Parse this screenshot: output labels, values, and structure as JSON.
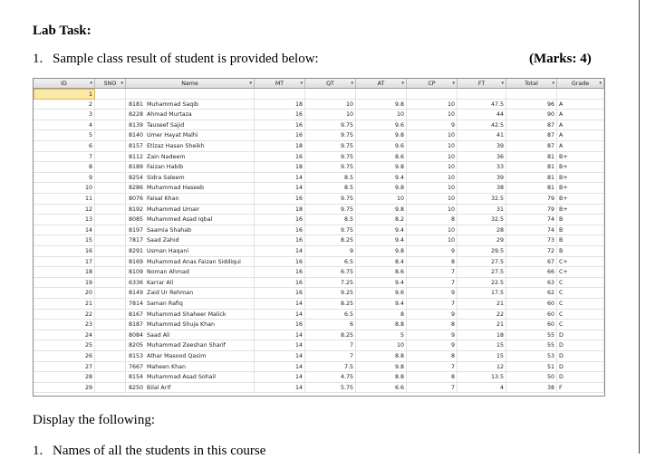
{
  "heading": "Lab Task:",
  "task": {
    "number": "1.",
    "text": "Sample class result of student is provided below:",
    "marks": "(Marks: 4)"
  },
  "table": {
    "columns": [
      "ID",
      "SNO",
      "Name",
      "MT",
      "QT",
      "AT",
      "CP",
      "FT",
      "Total",
      "Grade"
    ],
    "rows": [
      [
        1,
        null,
        null,
        null,
        null,
        null,
        null,
        null,
        null,
        null
      ],
      [
        2,
        8181,
        "Muhammad Saqib",
        18,
        10,
        9.8,
        10,
        47.5,
        96,
        "A"
      ],
      [
        3,
        8228,
        "Ahmad Murtaza",
        16,
        10,
        10,
        10,
        44,
        90,
        "A"
      ],
      [
        4,
        8139,
        "Tauseef Sajid",
        16,
        9.75,
        9.6,
        9,
        42.5,
        87,
        "A"
      ],
      [
        5,
        8140,
        "Umer Hayat Malhi",
        16,
        9.75,
        9.8,
        10,
        41,
        87,
        "A"
      ],
      [
        6,
        8157,
        "Etizaz Hasan Sheikh",
        18,
        9.75,
        9.6,
        10,
        39,
        87,
        "A"
      ],
      [
        7,
        8112,
        "Zain Nadeem",
        16,
        9.75,
        8.6,
        10,
        36,
        81,
        "B+"
      ],
      [
        8,
        8189,
        "Faizan Habib",
        18,
        9.75,
        9.8,
        10,
        33,
        81,
        "B+"
      ],
      [
        9,
        8254,
        "Sidra Saleem",
        14,
        8.5,
        9.4,
        10,
        39,
        81,
        "B+"
      ],
      [
        10,
        8286,
        "Muhammad Haseeb",
        14,
        8.5,
        9.8,
        10,
        38,
        81,
        "B+"
      ],
      [
        11,
        8076,
        "Faisal Khan",
        16,
        9.75,
        10,
        10,
        32.5,
        79,
        "B+"
      ],
      [
        12,
        8192,
        "Muhammad Umair",
        18,
        9.75,
        9.8,
        10,
        31,
        79,
        "B+"
      ],
      [
        13,
        8085,
        "Muhammed Asad Iqbal",
        16,
        8.5,
        8.2,
        8,
        32.5,
        74,
        "B"
      ],
      [
        14,
        8197,
        "Saamia Shahab",
        16,
        9.75,
        9.4,
        10,
        28,
        74,
        "B"
      ],
      [
        15,
        7817,
        "Saad Zahid",
        16,
        8.25,
        9.4,
        10,
        29,
        73,
        "B"
      ],
      [
        16,
        8291,
        "Usman Haqani",
        14,
        9,
        9.8,
        9,
        29.5,
        72,
        "B"
      ],
      [
        17,
        8169,
        "Muhammad Anas Faizan Siddiqui",
        16,
        6.5,
        8.4,
        8,
        27.5,
        67,
        "C+"
      ],
      [
        18,
        8109,
        "Noman Ahmad",
        16,
        6.75,
        8.6,
        7,
        27.5,
        66,
        "C+"
      ],
      [
        19,
        6336,
        "Karrar Ali",
        16,
        7.25,
        9.4,
        7,
        22.5,
        63,
        "C"
      ],
      [
        20,
        8149,
        "Zaid Ur Rehman",
        16,
        9.25,
        9.6,
        9,
        17.5,
        62,
        "C"
      ],
      [
        21,
        7814,
        "Saman Rafiq",
        14,
        8.25,
        9.4,
        7,
        21,
        60,
        "C"
      ],
      [
        22,
        8167,
        "Muhammad Shaheer Malick",
        14,
        6.5,
        8,
        9,
        22,
        60,
        "C"
      ],
      [
        23,
        8187,
        "Muhammad Shuja Khan",
        16,
        6,
        8.8,
        8,
        21,
        60,
        "C"
      ],
      [
        24,
        8084,
        "Saad Ali",
        14,
        8.25,
        5,
        9,
        18,
        55,
        "D"
      ],
      [
        25,
        8205,
        "Muhammad Zeeshan Sharif",
        14,
        7,
        10,
        9,
        15,
        55,
        "D"
      ],
      [
        26,
        8153,
        "Athar Masood Qasim",
        14,
        7,
        8.8,
        8,
        15,
        53,
        "D"
      ],
      [
        27,
        7667,
        "Maheen Khan",
        14,
        7.5,
        9.8,
        7,
        12,
        51,
        "D"
      ],
      [
        28,
        8154,
        "Muhammad Asad Sohail",
        14,
        4.75,
        8.8,
        8,
        13.5,
        50,
        "D"
      ],
      [
        29,
        8250,
        "Bilal Arif",
        14,
        5.75,
        6.6,
        7,
        4,
        38,
        "F"
      ]
    ]
  },
  "instructions": "Display the following:",
  "list": [
    {
      "number": "1.",
      "text": "Names of all the students in this course"
    }
  ]
}
